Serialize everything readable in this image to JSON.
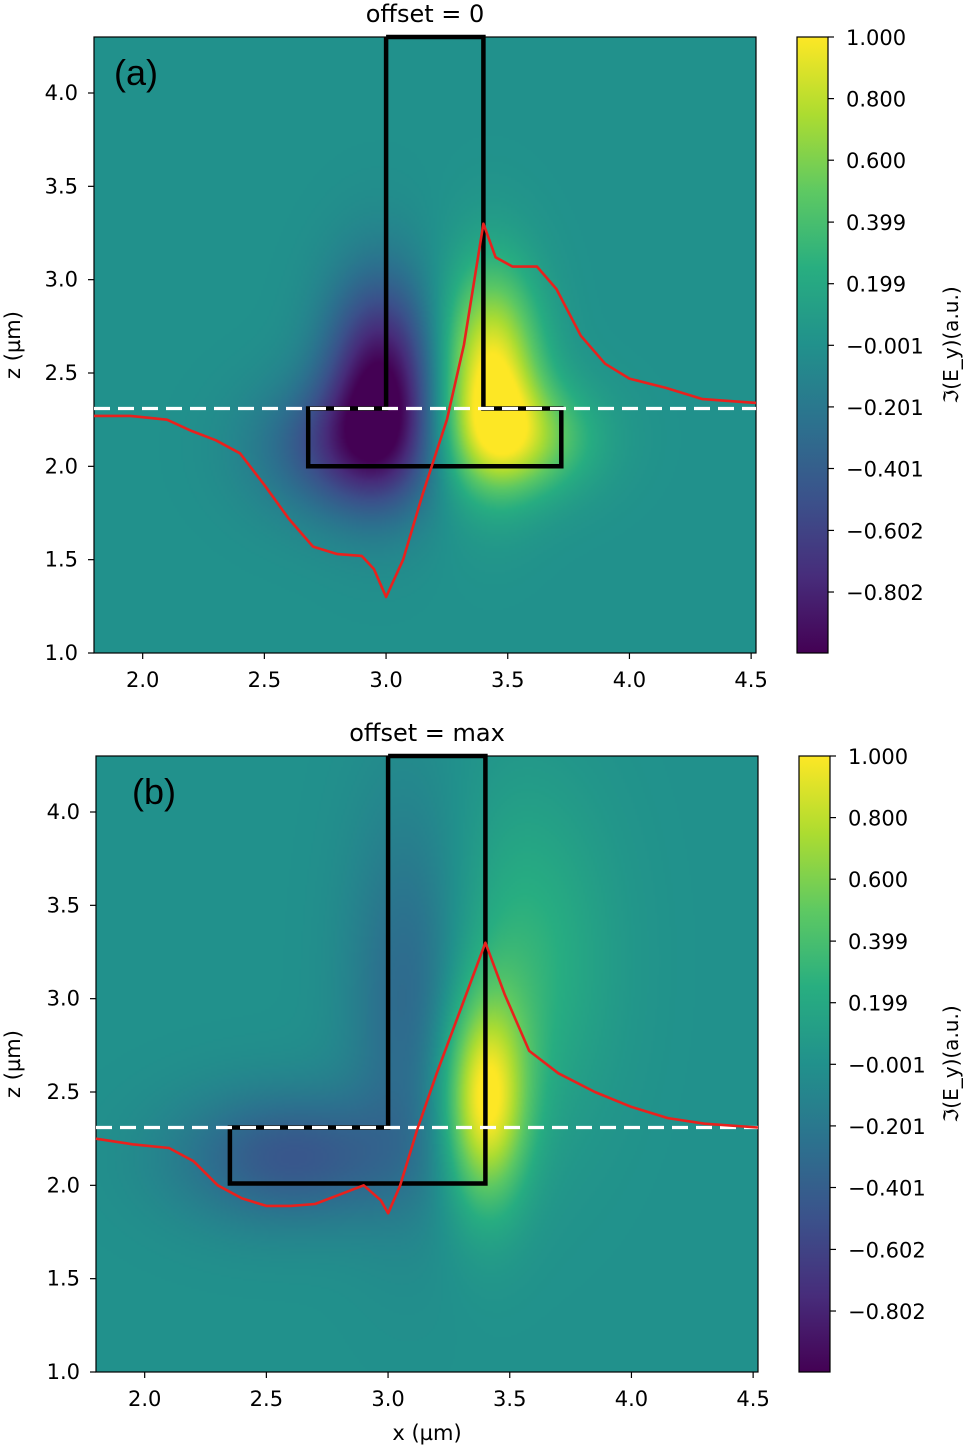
{
  "chart_data": [
    {
      "type": "heatmap",
      "panel_label": "(a)",
      "title": "offset = 0",
      "xlabel": "",
      "ylabel": "z (µm)",
      "xlim": [
        1.8,
        4.52
      ],
      "ylim": [
        1.0,
        4.3
      ],
      "x_ticks": [
        2.0,
        2.5,
        3.0,
        3.5,
        4.0,
        4.5
      ],
      "x_tick_labels": [
        "2.0",
        "2.5",
        "3.0",
        "3.5",
        "4.0",
        "4.5"
      ],
      "y_ticks": [
        1.0,
        1.5,
        2.0,
        2.5,
        3.0,
        3.5,
        4.0
      ],
      "y_tick_labels": [
        "1.0",
        "1.5",
        "2.0",
        "2.5",
        "3.0",
        "3.5",
        "4.0"
      ],
      "colormap": "viridis",
      "field_features": [
        {
          "x": 2.98,
          "z": 2.45,
          "sx": 0.22,
          "sz": 0.55,
          "amp": -0.95
        },
        {
          "x": 2.85,
          "z": 2.1,
          "sx": 0.35,
          "sz": 0.35,
          "amp": -0.55
        },
        {
          "x": 3.43,
          "z": 2.5,
          "sx": 0.2,
          "sz": 0.55,
          "amp": 1.0
        },
        {
          "x": 3.55,
          "z": 2.15,
          "sx": 0.3,
          "sz": 0.3,
          "amp": 0.6
        }
      ],
      "waveguide_outline": [
        [
          3.0,
          4.3
        ],
        [
          3.4,
          4.3
        ],
        [
          3.4,
          2.31
        ],
        [
          3.72,
          2.31
        ],
        [
          3.72,
          2.0
        ],
        [
          2.68,
          2.0
        ],
        [
          2.68,
          2.31
        ],
        [
          3.0,
          2.31
        ],
        [
          3.0,
          4.3
        ]
      ],
      "dashed_line_z": 2.31,
      "profile_curve": {
        "color": "#e8211d",
        "points": [
          [
            1.8,
            2.27
          ],
          [
            1.95,
            2.27
          ],
          [
            2.1,
            2.25
          ],
          [
            2.2,
            2.19
          ],
          [
            2.3,
            2.14
          ],
          [
            2.4,
            2.07
          ],
          [
            2.5,
            1.9
          ],
          [
            2.6,
            1.72
          ],
          [
            2.7,
            1.57
          ],
          [
            2.8,
            1.53
          ],
          [
            2.9,
            1.52
          ],
          [
            2.95,
            1.45
          ],
          [
            3.0,
            1.3
          ],
          [
            3.07,
            1.5
          ],
          [
            3.15,
            1.85
          ],
          [
            3.25,
            2.25
          ],
          [
            3.32,
            2.65
          ],
          [
            3.4,
            3.3
          ],
          [
            3.45,
            3.12
          ],
          [
            3.52,
            3.07
          ],
          [
            3.62,
            3.07
          ],
          [
            3.7,
            2.95
          ],
          [
            3.8,
            2.7
          ],
          [
            3.9,
            2.55
          ],
          [
            4.0,
            2.47
          ],
          [
            4.15,
            2.42
          ],
          [
            4.3,
            2.36
          ],
          [
            4.52,
            2.34
          ]
        ]
      },
      "colorbar": {
        "label": "ℑ(E_y)(a.u.)",
        "range": [
          -1.0,
          1.0
        ],
        "ticks": [
          1.0,
          0.8,
          0.6,
          0.399,
          0.199,
          -0.001,
          -0.201,
          -0.401,
          -0.602,
          -0.802
        ],
        "tick_labels": [
          "1.000",
          "0.800",
          "0.600",
          "0.399",
          "0.199",
          "−0.001",
          "−0.201",
          "−0.401",
          "−0.602",
          "−0.802"
        ]
      }
    },
    {
      "type": "heatmap",
      "panel_label": "(b)",
      "title": "offset = max",
      "xlabel": "x (µm)",
      "ylabel": "z (µm)",
      "xlim": [
        1.8,
        4.52
      ],
      "ylim": [
        1.0,
        4.3
      ],
      "x_ticks": [
        2.0,
        2.5,
        3.0,
        3.5,
        4.0,
        4.5
      ],
      "x_tick_labels": [
        "2.0",
        "2.5",
        "3.0",
        "3.5",
        "4.0",
        "4.5"
      ],
      "y_ticks": [
        1.0,
        1.5,
        2.0,
        2.5,
        3.0,
        3.5,
        4.0
      ],
      "y_tick_labels": [
        "1.0",
        "1.5",
        "2.0",
        "2.5",
        "3.0",
        "3.5",
        "4.0"
      ],
      "colormap": "viridis",
      "field_features": [
        {
          "x": 2.6,
          "z": 2.15,
          "sx": 0.45,
          "sz": 0.35,
          "amp": -0.45
        },
        {
          "x": 3.1,
          "z": 3.0,
          "sx": 0.25,
          "sz": 1.0,
          "amp": -0.35
        },
        {
          "x": 3.4,
          "z": 2.45,
          "sx": 0.17,
          "sz": 0.55,
          "amp": 1.0
        },
        {
          "x": 3.55,
          "z": 3.2,
          "sx": 0.35,
          "sz": 0.9,
          "amp": 0.3
        }
      ],
      "waveguide_outline": [
        [
          3.0,
          4.3
        ],
        [
          3.4,
          4.3
        ],
        [
          3.4,
          2.01
        ],
        [
          2.35,
          2.01
        ],
        [
          2.35,
          2.31
        ],
        [
          3.0,
          2.31
        ],
        [
          3.0,
          4.3
        ]
      ],
      "dashed_line_z": 2.31,
      "profile_curve": {
        "color": "#e8211d",
        "points": [
          [
            1.8,
            2.25
          ],
          [
            1.95,
            2.22
          ],
          [
            2.1,
            2.2
          ],
          [
            2.2,
            2.13
          ],
          [
            2.3,
            2.0
          ],
          [
            2.4,
            1.93
          ],
          [
            2.5,
            1.89
          ],
          [
            2.6,
            1.89
          ],
          [
            2.7,
            1.9
          ],
          [
            2.8,
            1.95
          ],
          [
            2.9,
            2.0
          ],
          [
            2.97,
            1.92
          ],
          [
            3.0,
            1.85
          ],
          [
            3.05,
            2.0
          ],
          [
            3.12,
            2.3
          ],
          [
            3.2,
            2.6
          ],
          [
            3.3,
            2.95
          ],
          [
            3.4,
            3.3
          ],
          [
            3.48,
            3.02
          ],
          [
            3.58,
            2.72
          ],
          [
            3.7,
            2.6
          ],
          [
            3.85,
            2.5
          ],
          [
            4.0,
            2.42
          ],
          [
            4.15,
            2.36
          ],
          [
            4.3,
            2.33
          ],
          [
            4.52,
            2.31
          ]
        ]
      },
      "colorbar": {
        "label": "ℑ(E_y)(a.u.)",
        "range": [
          -1.0,
          1.0
        ],
        "ticks": [
          1.0,
          0.8,
          0.6,
          0.399,
          0.199,
          -0.001,
          -0.201,
          -0.401,
          -0.602,
          -0.802
        ],
        "tick_labels": [
          "1.000",
          "0.800",
          "0.600",
          "0.399",
          "0.199",
          "−0.001",
          "−0.201",
          "−0.401",
          "−0.602",
          "−0.802"
        ]
      }
    }
  ]
}
